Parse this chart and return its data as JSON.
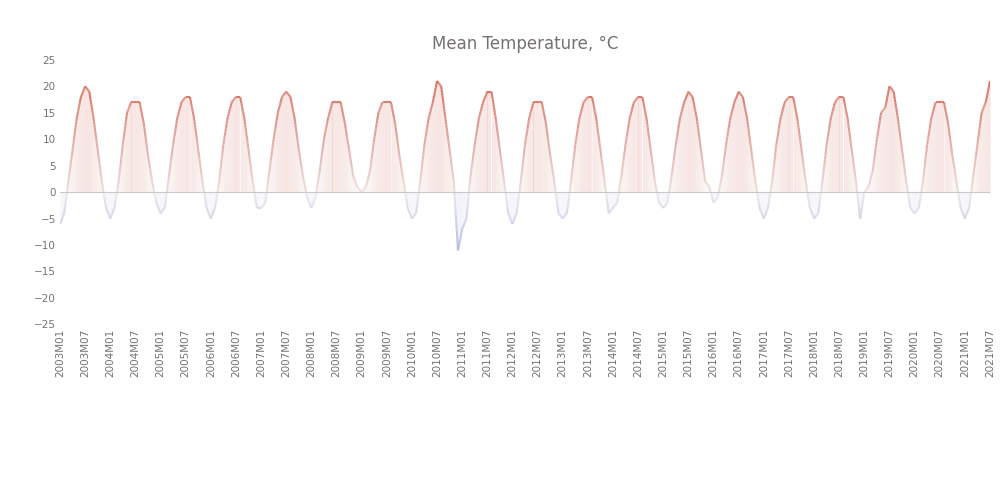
{
  "title": "Mean Temperature, °C",
  "title_fontsize": 12,
  "title_color": "#767171",
  "ylim": [
    -25,
    25
  ],
  "yticks": [
    -25,
    -20,
    -15,
    -10,
    -5,
    0,
    5,
    10,
    15,
    20,
    25
  ],
  "background_color": "#ffffff",
  "zero_line_color": "#c8c8c8",
  "tick_color": "#767171",
  "tick_fontsize": 7.5,
  "start_year": 2003,
  "start_month": 1,
  "end_year": 2021,
  "end_month": 7,
  "monthly_temps": {
    "2003": [
      -6,
      -4,
      2,
      8,
      14,
      18,
      20,
      19,
      14,
      8,
      2,
      -3
    ],
    "2004": [
      -5,
      -3,
      2,
      9,
      15,
      17,
      17,
      17,
      13,
      7,
      2,
      -2
    ],
    "2005": [
      -4,
      -3,
      3,
      9,
      14,
      17,
      18,
      18,
      14,
      8,
      2,
      -3
    ],
    "2006": [
      -5,
      -3,
      2,
      9,
      14,
      17,
      18,
      18,
      14,
      8,
      2,
      -3
    ],
    "2007": [
      -3,
      -2,
      4,
      10,
      15,
      18,
      19,
      18,
      14,
      8,
      3,
      -1
    ],
    "2008": [
      -3,
      -1,
      4,
      10,
      14,
      17,
      17,
      17,
      13,
      8,
      3,
      1
    ],
    "2009": [
      0,
      1,
      4,
      10,
      15,
      17,
      17,
      17,
      13,
      7,
      2,
      -3
    ],
    "2010": [
      -5,
      -4,
      2,
      9,
      14,
      17,
      21,
      20,
      14,
      8,
      2,
      -11
    ],
    "2011": [
      -7,
      -5,
      3,
      9,
      14,
      17,
      19,
      19,
      14,
      8,
      2,
      -4
    ],
    "2012": [
      -6,
      -4,
      2,
      9,
      14,
      17,
      17,
      17,
      13,
      7,
      2,
      -4
    ],
    "2013": [
      -5,
      -4,
      2,
      9,
      14,
      17,
      18,
      18,
      14,
      8,
      2,
      -4
    ],
    "2014": [
      -3,
      -2,
      3,
      9,
      14,
      17,
      18,
      18,
      14,
      8,
      2,
      -2
    ],
    "2015": [
      -3,
      -2,
      3,
      9,
      14,
      17,
      19,
      18,
      14,
      8,
      2,
      1
    ],
    "2016": [
      -2,
      -1,
      3,
      9,
      14,
      17,
      19,
      18,
      14,
      8,
      2,
      -3
    ],
    "2017": [
      -5,
      -3,
      2,
      9,
      14,
      17,
      18,
      18,
      14,
      8,
      2,
      -3
    ],
    "2018": [
      -5,
      -4,
      2,
      9,
      14,
      17,
      18,
      18,
      14,
      8,
      2,
      -5
    ],
    "2019": [
      0,
      1,
      4,
      10,
      15,
      16,
      20,
      19,
      14,
      8,
      2,
      -3
    ],
    "2020": [
      -4,
      -3,
      2,
      9,
      14,
      17,
      17,
      17,
      13,
      7,
      2,
      -3
    ],
    "2021": [
      -5,
      -3,
      3,
      9,
      15,
      17,
      21,
      null,
      null,
      null,
      null,
      null
    ]
  }
}
